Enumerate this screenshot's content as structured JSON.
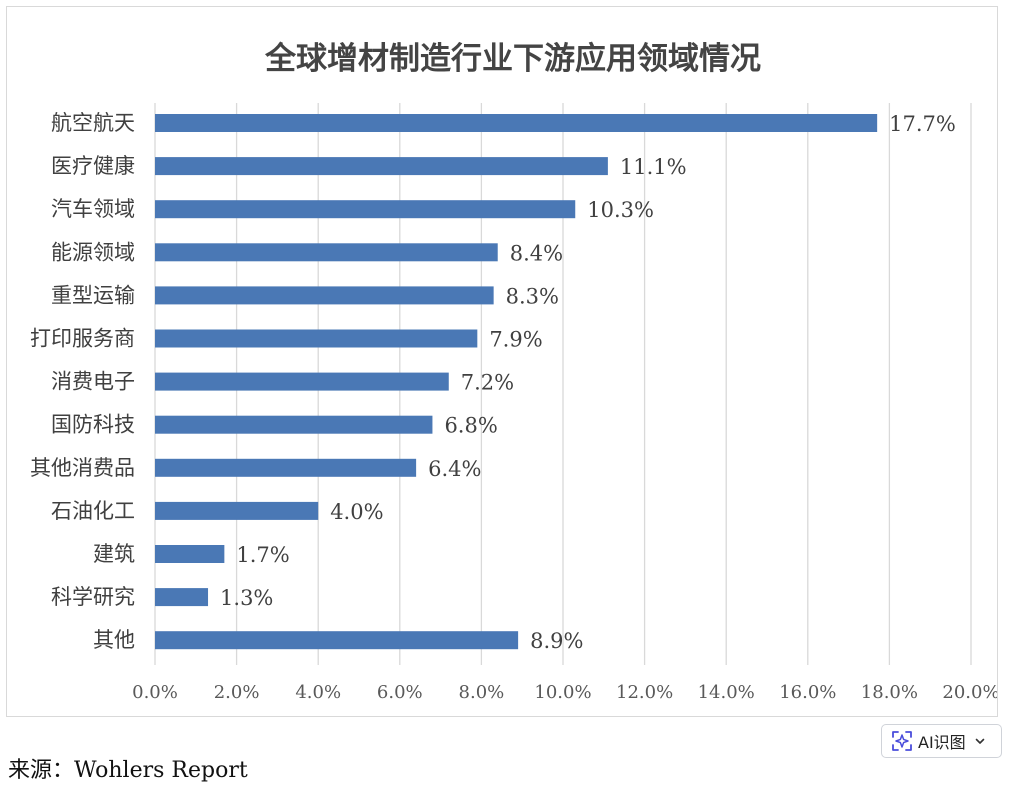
{
  "chart_data": {
    "type": "bar",
    "orientation": "horizontal",
    "title": "全球增材制造行业下游应用领域情况",
    "categories": [
      "航空航天",
      "医疗健康",
      "汽车领域",
      "能源领域",
      "重型运输",
      "打印服务商",
      "消费电子",
      "国防科技",
      "其他消费品",
      "石油化工",
      "建筑",
      "科学研究",
      "其他"
    ],
    "values": [
      17.7,
      11.1,
      10.3,
      8.4,
      8.3,
      7.9,
      7.2,
      6.8,
      6.4,
      4.0,
      1.7,
      1.3,
      8.9
    ],
    "data_labels": [
      "17.7%",
      "11.1%",
      "10.3%",
      "8.4%",
      "8.3%",
      "7.9%",
      "7.2%",
      "6.8%",
      "6.4%",
      "4.0%",
      "1.7%",
      "1.3%",
      "8.9%"
    ],
    "x_ticks": [
      "0.0%",
      "2.0%",
      "4.0%",
      "6.0%",
      "8.0%",
      "10.0%",
      "12.0%",
      "14.0%",
      "16.0%",
      "18.0%",
      "20.0%"
    ],
    "xlim": [
      0,
      20
    ],
    "grid": "vertical",
    "legend": "none",
    "bar_color": "#4a78b5",
    "grid_color": "#d9d9d9"
  },
  "source": {
    "label": "来源：",
    "text": "Wohlers Report"
  },
  "ai_button": {
    "label": "AI识图",
    "icon": "sparkle-scan-icon",
    "chevron": "chevron-down-icon",
    "accent": "#4a4ddb"
  }
}
